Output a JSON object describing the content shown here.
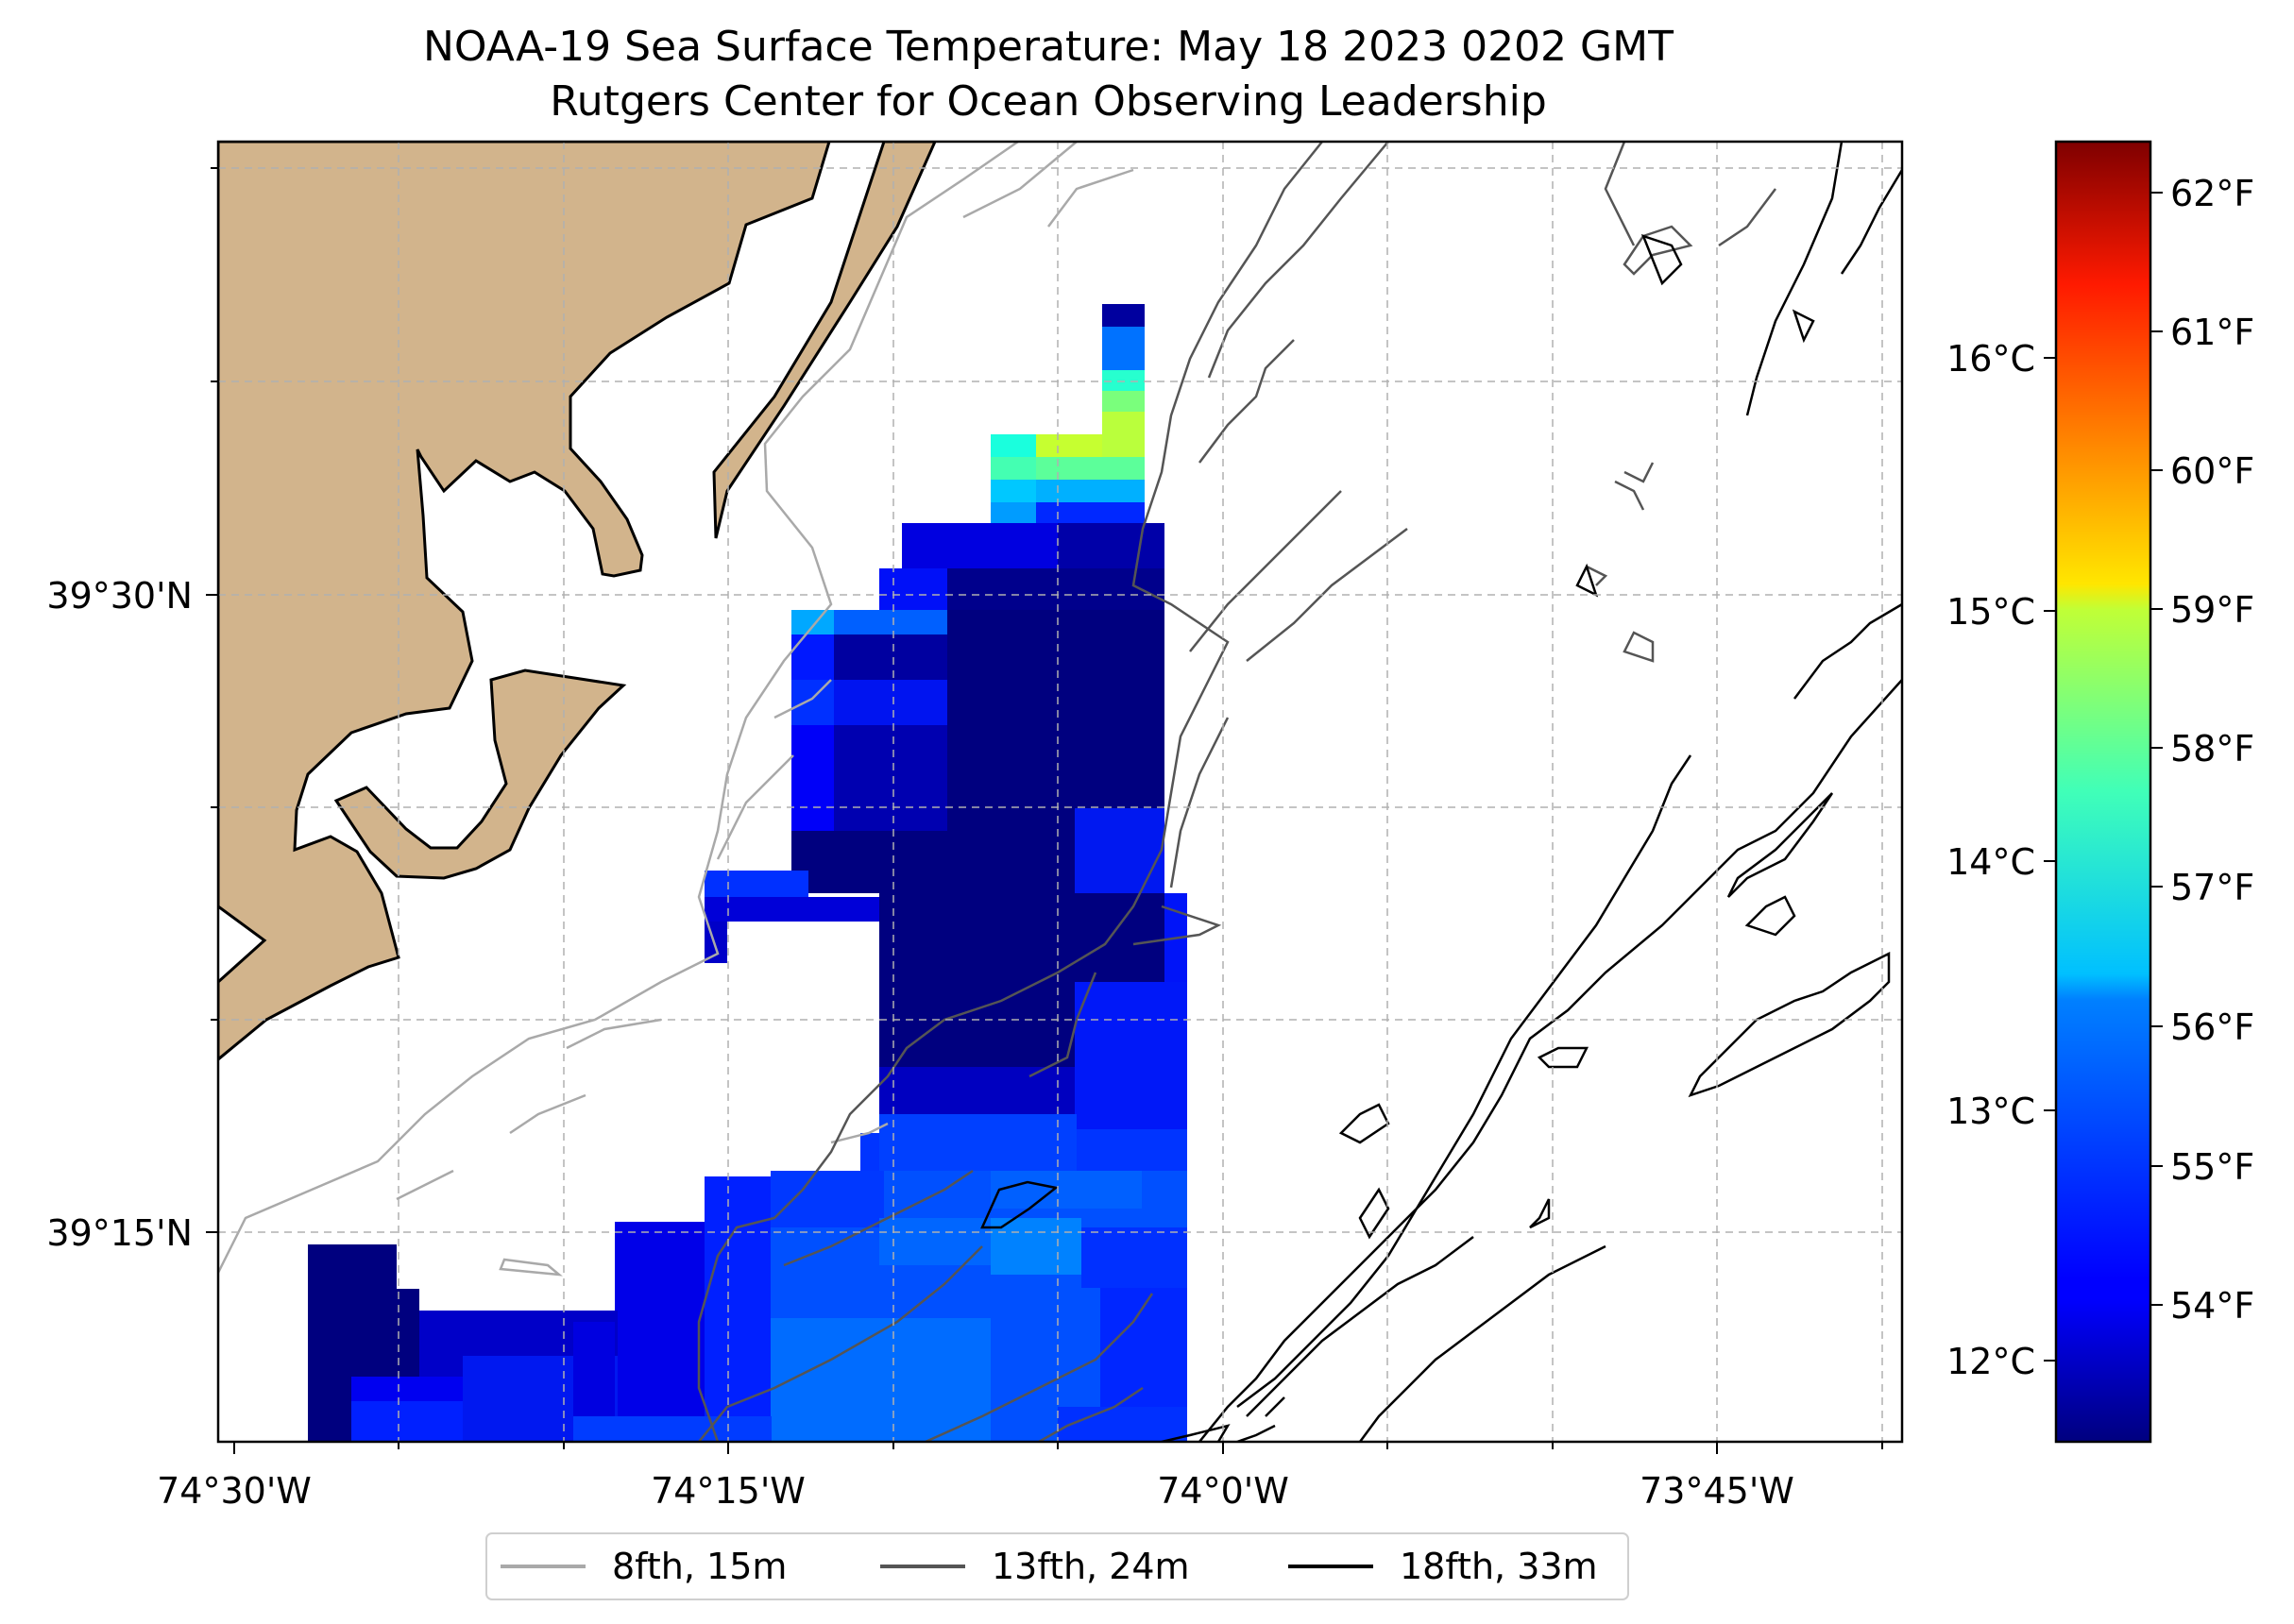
{
  "title": {
    "line1": "NOAA-19 Sea Surface Temperature: May 18 2023 0202 GMT",
    "line2": "Rutgers Center for Ocean Observing Leadership"
  },
  "map": {
    "lon_labels": [
      "74°30'W",
      "74°15'W",
      "74°0'W",
      "73°45'W"
    ],
    "lat_labels": [
      "39°30'N",
      "39°15'N"
    ],
    "land_color": "#d2b48c"
  },
  "legend": {
    "items": [
      {
        "label": "8fth, 15m",
        "color": "#a9a9a9"
      },
      {
        "label": "13fth, 24m",
        "color": "#555555"
      },
      {
        "label": "18fth, 33m",
        "color": "#000000"
      }
    ]
  },
  "colorbar": {
    "celsius_ticks": [
      "16°C",
      "15°C",
      "14°C",
      "13°C",
      "12°C"
    ],
    "fahrenheit_ticks": [
      "62°F",
      "61°F",
      "60°F",
      "59°F",
      "58°F",
      "57°F",
      "56°F",
      "55°F",
      "54°F"
    ],
    "colormap": "jet"
  }
}
